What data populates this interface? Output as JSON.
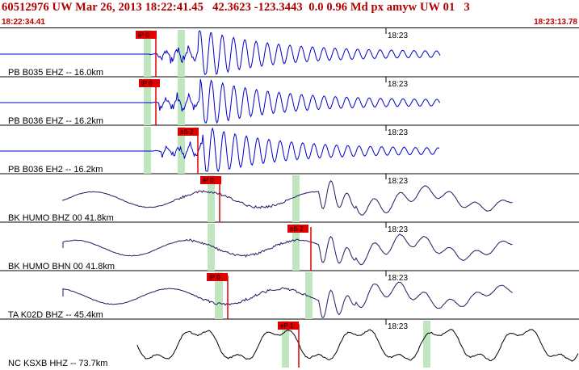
{
  "header": {
    "title": "60512976 UW Mar 26, 2013 18:22:41.45   42.3623 -123.3443  0.0 0.96 Md px amyw UW 01   3",
    "start_time": "18:22:34.41",
    "end_time": "18:23:13.78"
  },
  "colors": {
    "header_text": "#b20000",
    "time_text": "#c00000",
    "pick_label_bg": "#e00000",
    "pick_line": "#e00000",
    "pick_window": "#bfe6bf",
    "trace_blue": "#0000cc",
    "trace_purple": "#2a1460",
    "trace_black": "#000000"
  },
  "panels": [
    {
      "station_label": "PB B035 EHZ -- 16.0km",
      "time_tick": "18:23",
      "pick_label": "iP 0",
      "trace_style": "blue"
    },
    {
      "station_label": "PB B036 EHZ -- 16.2km",
      "time_tick": "18:23",
      "pick_label": "iP 0",
      "trace_style": "blue"
    },
    {
      "station_label": "PB B036 EH2 -- 16.2km",
      "time_tick": "18:23",
      "pick_label": "eS 2",
      "trace_style": "blue"
    },
    {
      "station_label": "BK HUMO BHZ 00 41.8km",
      "time_tick": "18:23",
      "pick_label": "iP 0",
      "trace_style": "purple"
    },
    {
      "station_label": "BK HUMO BHN 00 41.8km",
      "time_tick": "18:23",
      "pick_label": "eS 2",
      "trace_style": "purple"
    },
    {
      "station_label": "TA K02D BHZ -- 45.4km",
      "time_tick": "18:23",
      "pick_label": "iP 0",
      "trace_style": "purple"
    },
    {
      "station_label": "NC KSXB HHZ -- 73.7km",
      "time_tick": "18:23",
      "pick_label": "eP 1",
      "trace_style": "black"
    }
  ]
}
